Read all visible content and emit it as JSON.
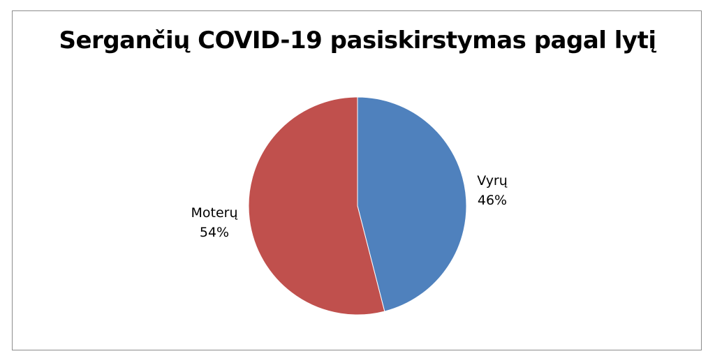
{
  "chart_data": {
    "type": "pie",
    "title": "Sergančių COVID-19 pasiskirstymas pagal lytį",
    "slices": [
      {
        "label": "Vyrų",
        "value": 46,
        "value_label": "46%",
        "color": "#4F81BD"
      },
      {
        "label": "Moterų",
        "value": 54,
        "value_label": "54%",
        "color": "#C0504D"
      }
    ],
    "start_angle": "12 o'clock",
    "direction": "clockwise",
    "legend": "none",
    "data_labels": "outside"
  }
}
